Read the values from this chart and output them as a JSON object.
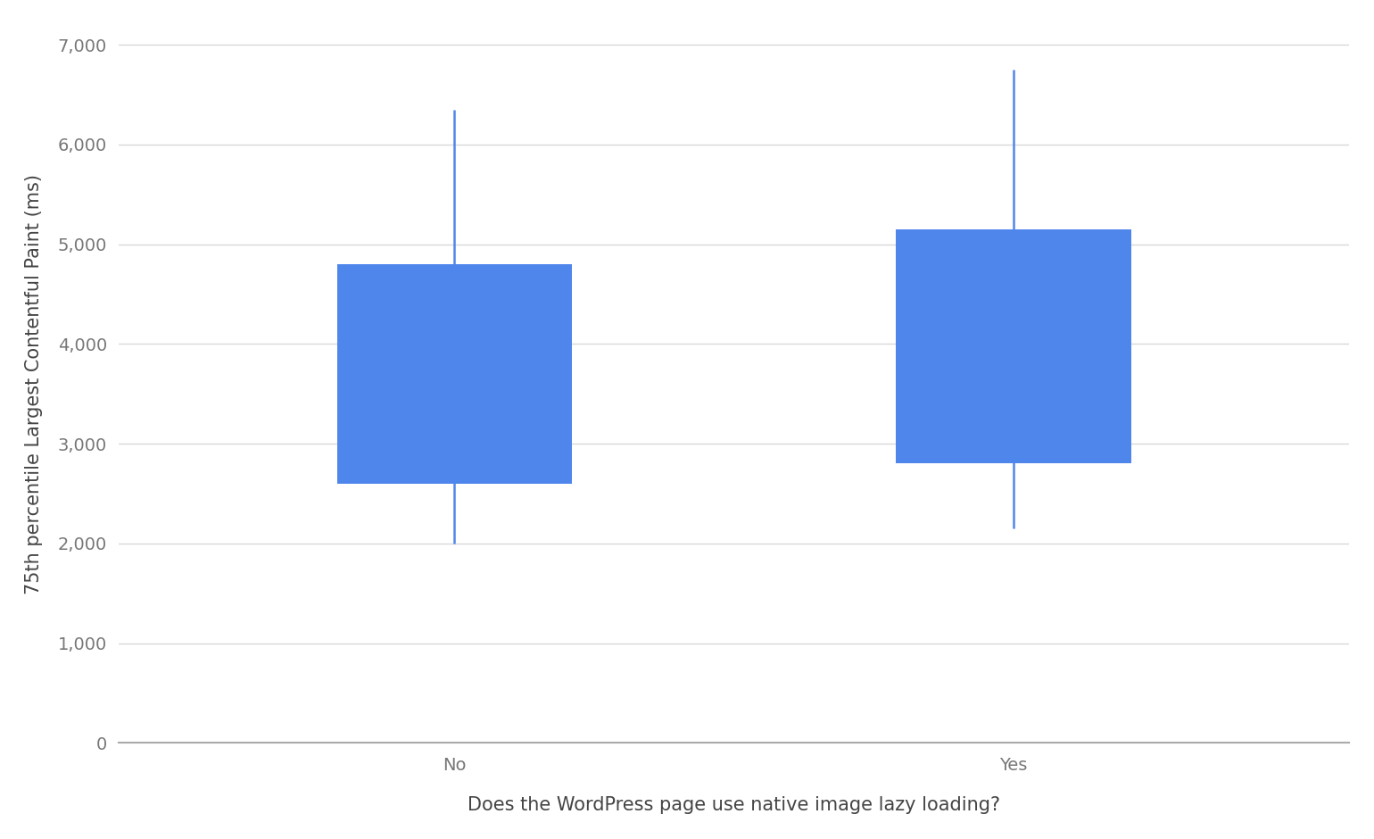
{
  "categories": [
    "No",
    "Yes"
  ],
  "boxes": [
    {
      "q25": 2600,
      "q75": 4800,
      "whisker_low": 2000,
      "whisker_high": 6350
    },
    {
      "q25": 2800,
      "q75": 5150,
      "whisker_low": 2150,
      "whisker_high": 6750
    }
  ],
  "box_color": "#4F86EC",
  "whisker_color": "#4F86EC",
  "ylabel": "75th percentile Largest Contentful Paint (ms)",
  "xlabel": "Does the WordPress page use native image lazy loading?",
  "ylim": [
    0,
    7200
  ],
  "yticks": [
    0,
    1000,
    2000,
    3000,
    4000,
    5000,
    6000,
    7000
  ],
  "ytick_labels": [
    "0",
    "1,000",
    "2,000",
    "3,000",
    "4,000",
    "5,000",
    "6,000",
    "7,000"
  ],
  "background_color": "#ffffff",
  "grid_color": "#d8d8d8",
  "box_width": 0.42,
  "whisker_linewidth": 1.8,
  "ylabel_fontsize": 15,
  "xlabel_fontsize": 15,
  "tick_fontsize": 14,
  "tick_color": "#777777",
  "label_color": "#444444",
  "x_positions": [
    1.0,
    2.0
  ],
  "xlim": [
    0.4,
    2.6
  ]
}
